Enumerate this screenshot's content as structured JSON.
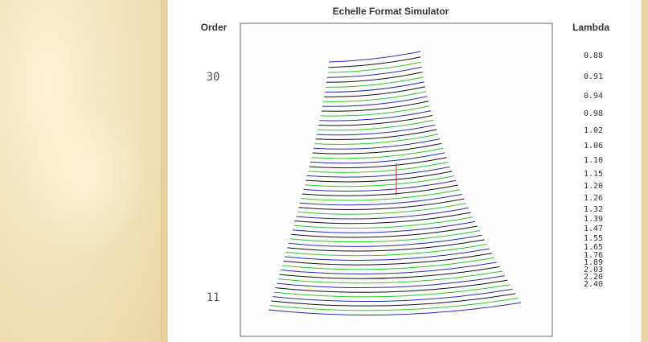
{
  "chart_data": {
    "type": "line",
    "title": "Echelle Format Simulator",
    "left_header": "Order",
    "right_header": "Lambda",
    "order_labels": [
      {
        "order": 30,
        "text": "30"
      },
      {
        "order": 11,
        "text": "11"
      }
    ],
    "orders": {
      "first": 30,
      "last": 11
    },
    "lambda_labels": [
      "0.88",
      "0.91",
      "0.94",
      "0.98",
      "1.02",
      "1.06",
      "1.10",
      "1.15",
      "1.20",
      "1.26",
      "1.32",
      "1.39",
      "1.47",
      "1.55",
      "1.65",
      "1.76",
      "1.89",
      "2.03",
      "2.20",
      "2.40"
    ],
    "trace_colors": [
      "#2a2ab0",
      "#111111",
      "#2bc92b"
    ],
    "slit_marker_color": "#cc2020",
    "frame_color": "#666666"
  }
}
